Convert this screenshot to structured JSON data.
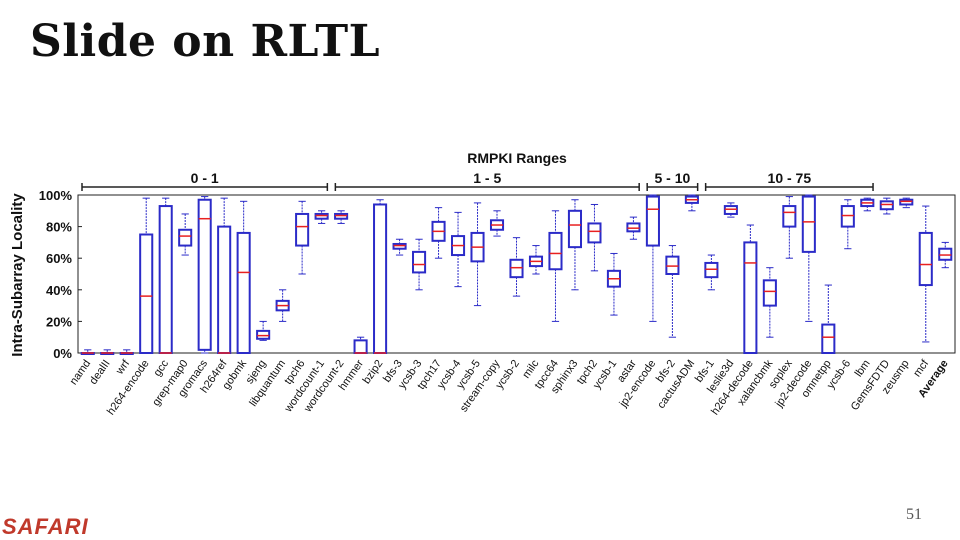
{
  "slide": {
    "title": "Slide on RLTL",
    "logo": "SAFARI",
    "page_number": "51"
  },
  "chart_data": {
    "type": "box",
    "title": "RMPKI Ranges",
    "ylabel": "Intra-Subarray Locality",
    "ylim": [
      0,
      100
    ],
    "yticks": [
      "0%",
      "20%",
      "40%",
      "60%",
      "80%",
      "100%"
    ],
    "groups": [
      {
        "label": "0 - 1",
        "from": 0,
        "to": 12
      },
      {
        "label": "1 - 5",
        "from": 13,
        "to": 28
      },
      {
        "label": "5 - 10",
        "from": 29,
        "to": 31
      },
      {
        "label": "10 - 75",
        "from": 32,
        "to": 40
      }
    ],
    "categories": [
      "namd",
      "dealII",
      "wrf",
      "h264-encode",
      "gcc",
      "grep-map0",
      "gromacs",
      "h264ref",
      "gobmk",
      "sjeng",
      "libquantum",
      "tpch6",
      "wordcount-1",
      "wordcount-2",
      "hmmer",
      "bzip2",
      "bfs-3",
      "ycsb-3",
      "tpch17",
      "ycsb-4",
      "ycsb-5",
      "stream-copy",
      "ycsb-2",
      "milc",
      "tpcc64",
      "sphinx3",
      "tpch2",
      "ycsb-1",
      "astar",
      "jp2-encode",
      "bfs-2",
      "cactusADM",
      "bfs-1",
      "leslie3d",
      "h264-decode",
      "xalancbmk",
      "soplex",
      "jp2-decode",
      "omnetpp",
      "ycsb-6",
      "lbm",
      "GemsFDTD",
      "zeusmp",
      "mcf",
      "Average"
    ],
    "box_color": "#2b2bc8",
    "median_color": "#e82020",
    "boxes": [
      [
        0,
        0,
        0,
        0,
        2
      ],
      [
        0,
        0,
        0,
        0,
        2
      ],
      [
        0,
        0,
        0,
        0,
        2
      ],
      [
        0,
        0,
        36,
        75,
        98
      ],
      [
        0,
        0,
        0,
        93,
        98
      ],
      [
        62,
        68,
        74,
        78,
        88
      ],
      [
        0,
        2,
        85,
        97,
        99
      ],
      [
        0,
        0,
        0,
        80,
        98
      ],
      [
        0,
        0,
        51,
        76,
        96
      ],
      [
        8,
        9,
        11,
        14,
        20
      ],
      [
        20,
        27,
        30,
        33,
        40
      ],
      [
        50,
        68,
        80,
        88,
        96
      ],
      [
        82,
        85,
        87,
        88,
        90
      ],
      [
        82,
        85,
        87,
        88,
        90
      ],
      [
        0,
        0,
        0,
        8,
        10
      ],
      [
        0,
        0,
        0,
        94,
        97
      ],
      [
        62,
        66,
        68,
        69,
        72
      ],
      [
        40,
        51,
        56,
        64,
        72
      ],
      [
        60,
        71,
        77,
        83,
        92
      ],
      [
        42,
        62,
        68,
        74,
        89
      ],
      [
        30,
        58,
        67,
        76,
        95
      ],
      [
        74,
        78,
        81,
        84,
        90
      ],
      [
        36,
        48,
        54,
        59,
        73
      ],
      [
        50,
        55,
        58,
        61,
        68
      ],
      [
        20,
        53,
        63,
        76,
        90
      ],
      [
        40,
        67,
        81,
        90,
        97
      ],
      [
        52,
        70,
        77,
        82,
        94
      ],
      [
        24,
        42,
        47,
        52,
        63
      ],
      [
        72,
        77,
        79,
        82,
        86
      ],
      [
        20,
        68,
        91,
        99,
        100
      ],
      [
        10,
        50,
        55,
        61,
        68
      ],
      [
        90,
        95,
        97,
        99,
        100
      ],
      [
        40,
        48,
        53,
        57,
        62
      ],
      [
        86,
        88,
        91,
        93,
        95
      ],
      [
        0,
        0,
        57,
        70,
        81
      ],
      [
        10,
        30,
        39,
        46,
        54
      ],
      [
        60,
        80,
        89,
        93,
        99
      ],
      [
        20,
        64,
        83,
        99,
        100
      ],
      [
        0,
        0,
        10,
        18,
        43
      ],
      [
        66,
        80,
        87,
        93,
        97
      ],
      [
        90,
        93,
        95,
        97,
        98
      ],
      [
        88,
        91,
        94,
        96,
        98
      ],
      [
        92,
        94,
        96,
        97,
        98
      ],
      [
        7,
        43,
        56,
        76,
        93
      ],
      [
        54,
        59,
        62,
        66,
        70
      ]
    ]
  }
}
